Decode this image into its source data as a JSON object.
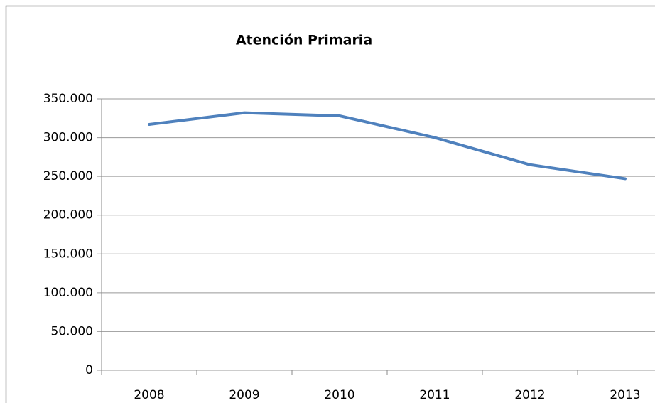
{
  "chart_data": {
    "type": "line",
    "title": "Atención Primaria",
    "categories": [
      "2008",
      "2009",
      "2010",
      "2011",
      "2012",
      "2013"
    ],
    "series": [
      {
        "name": "Atención Primaria",
        "color": "#4f81bd",
        "values": [
          317000,
          332000,
          328000,
          300000,
          265000,
          247000
        ]
      }
    ],
    "ylim": [
      0,
      350000
    ],
    "yticks": [
      0,
      {
        "value": 50000,
        "label": "50.000"
      },
      {
        "value": 100000,
        "label": "100.000"
      },
      {
        "value": 150000,
        "label": "150.000"
      },
      {
        "value": 200000,
        "label": "200.000"
      },
      {
        "value": 250000,
        "label": "250.000"
      },
      {
        "value": 300000,
        "label": "300.000"
      },
      {
        "value": 350000,
        "label": "350.000"
      }
    ],
    "grid": true
  }
}
